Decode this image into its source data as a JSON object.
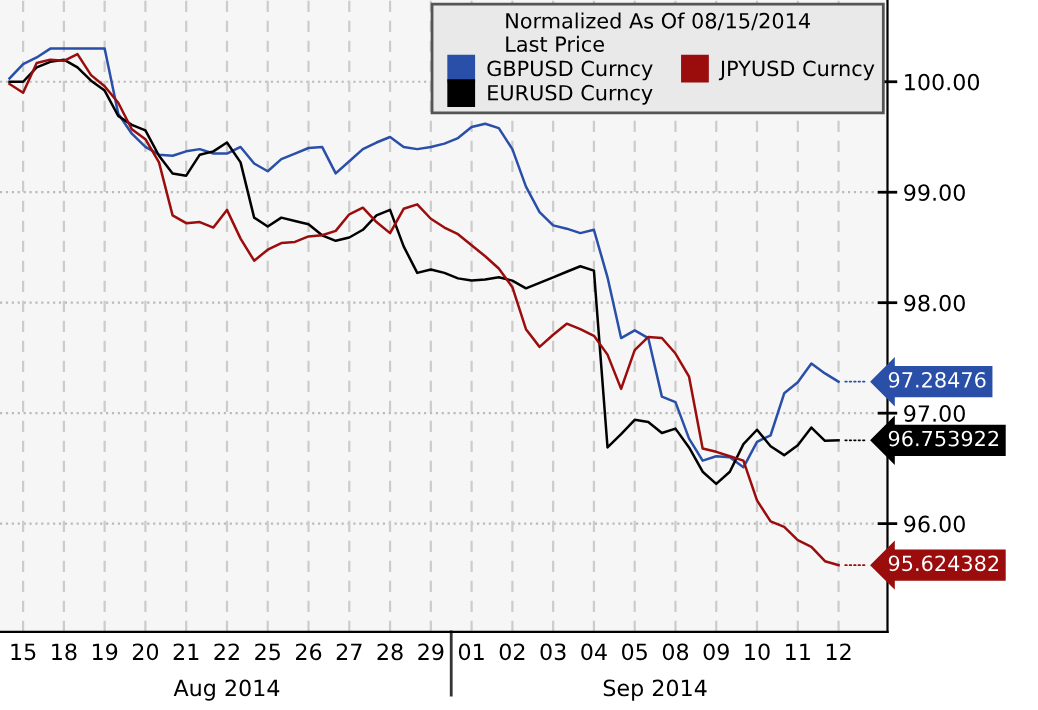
{
  "chart_data": {
    "type": "line",
    "legend_title": "Normalized As Of 08/15/2014\nLast Price",
    "legend": "top right",
    "grid": true,
    "line_style": "solid",
    "annotations": [
      "Aug 2014",
      "Sep 2014",
      {
        "text": "97.28476",
        "x": "12",
        "y": 97.28476
      },
      {
        "text": "96.753922",
        "x": "12",
        "y": 96.753922
      },
      {
        "text": "95.624382",
        "x": "12",
        "y": 95.624382
      }
    ],
    "categories": [
      null,
      "15",
      null,
      null,
      "18",
      null,
      null,
      "19",
      null,
      null,
      "20",
      null,
      null,
      "21",
      null,
      null,
      "22",
      null,
      null,
      "25",
      null,
      null,
      "26",
      null,
      null,
      "27",
      null,
      null,
      "28",
      null,
      null,
      "29",
      null,
      null,
      "01",
      null,
      null,
      "02",
      null,
      null,
      "03",
      null,
      null,
      "04",
      null,
      null,
      "05",
      null,
      null,
      "08",
      null,
      null,
      "09",
      null,
      null,
      "10",
      null,
      null,
      "11",
      null,
      null,
      "12",
      null
    ],
    "ylim": [
      95.02,
      100.74
    ],
    "yticks": [
      {
        "value": 96,
        "label": "96.00"
      },
      {
        "value": 97,
        "label": "97.00"
      },
      {
        "value": 98,
        "label": "98.00"
      },
      {
        "value": 99,
        "label": "99.00"
      },
      {
        "value": 100,
        "label": "100.00"
      }
    ],
    "series": [
      {
        "name": "GBPUSD Curncy",
        "color": "#2a4fa8",
        "values": [
          100.03,
          100.16,
          100.22,
          100.3,
          100.3,
          100.3,
          100.3,
          100.3,
          99.71,
          99.53,
          99.41,
          99.34,
          99.33,
          99.37,
          99.39,
          99.35,
          99.35,
          99.41,
          99.26,
          99.19,
          99.3,
          99.35,
          99.4,
          99.41,
          99.17,
          99.28,
          99.39,
          99.45,
          99.5,
          99.41,
          99.39,
          99.41,
          99.44,
          99.49,
          99.59,
          99.62,
          99.58,
          99.39,
          99.05,
          98.82,
          98.7,
          98.67,
          98.63,
          98.66,
          98.23,
          97.68,
          97.75,
          97.68,
          97.15,
          97.1,
          96.77,
          96.57,
          96.61,
          96.6,
          96.51,
          96.74,
          96.8,
          97.18,
          97.28,
          97.45,
          97.36,
          97.28476,
          null
        ]
      },
      {
        "name": "EURUSD Curncy",
        "color": "#000000",
        "values": [
          100.0,
          100.0,
          100.13,
          100.18,
          100.2,
          100.13,
          100.01,
          99.92,
          99.69,
          99.61,
          99.56,
          99.33,
          99.17,
          99.15,
          99.34,
          99.37,
          99.45,
          99.27,
          98.77,
          98.69,
          98.77,
          98.74,
          98.71,
          98.61,
          98.56,
          98.59,
          98.66,
          98.79,
          98.84,
          98.51,
          98.27,
          98.3,
          98.27,
          98.22,
          98.2,
          98.21,
          98.23,
          98.2,
          98.13,
          98.18,
          98.23,
          98.28,
          98.33,
          98.29,
          96.69,
          96.81,
          96.94,
          96.92,
          96.82,
          96.86,
          96.69,
          96.47,
          96.36,
          96.47,
          96.72,
          96.85,
          96.7,
          96.62,
          96.71,
          96.87,
          96.75,
          96.753922,
          null
        ]
      },
      {
        "name": "JPYUSD Curncy",
        "color": "#9b0d0d",
        "values": [
          99.98,
          99.9,
          100.17,
          100.2,
          100.19,
          100.25,
          100.06,
          99.96,
          99.81,
          99.57,
          99.48,
          99.27,
          98.79,
          98.72,
          98.73,
          98.68,
          98.84,
          98.58,
          98.38,
          98.48,
          98.54,
          98.55,
          98.6,
          98.61,
          98.65,
          98.8,
          98.86,
          98.73,
          98.63,
          98.85,
          98.89,
          98.76,
          98.68,
          98.62,
          98.52,
          98.42,
          98.31,
          98.14,
          97.76,
          97.6,
          97.71,
          97.81,
          97.76,
          97.7,
          97.53,
          97.22,
          97.57,
          97.69,
          97.68,
          97.54,
          97.33,
          96.68,
          96.65,
          96.61,
          96.57,
          96.21,
          96.02,
          95.97,
          95.85,
          95.79,
          95.66,
          95.624382,
          null
        ]
      }
    ]
  }
}
